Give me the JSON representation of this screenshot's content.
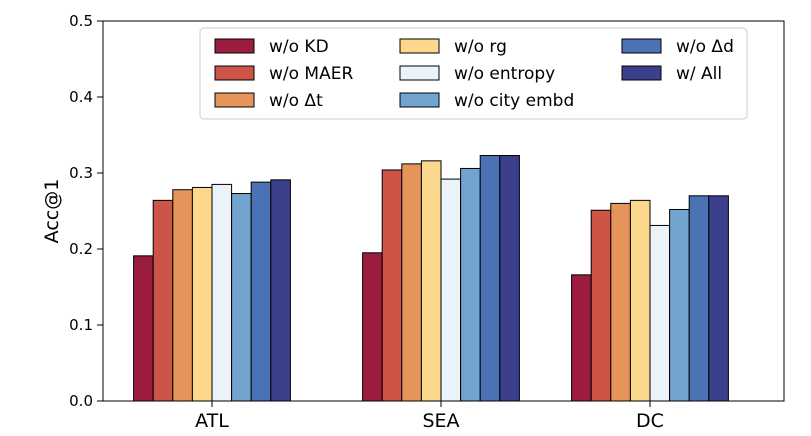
{
  "chart_data": {
    "type": "bar",
    "title": "",
    "xlabel": "",
    "ylabel": "Acc@1",
    "ylim": [
      0.0,
      0.5
    ],
    "yticks": [
      "0.0",
      "0.1",
      "0.2",
      "0.3",
      "0.4",
      "0.5"
    ],
    "categories": [
      "ATL",
      "SEA",
      "DC"
    ],
    "legend_position": "top-right",
    "series": [
      {
        "name": "w/o KD",
        "color": "#9b1c3f",
        "values": [
          0.191,
          0.195,
          0.166
        ]
      },
      {
        "name": "w/o MAER",
        "color": "#cd5548",
        "values": [
          0.264,
          0.304,
          0.251
        ]
      },
      {
        "name": "w/o Δt",
        "color": "#e5955a",
        "values": [
          0.278,
          0.312,
          0.26
        ]
      },
      {
        "name": "w/o rg",
        "color": "#fbd88c",
        "values": [
          0.281,
          0.316,
          0.264
        ]
      },
      {
        "name": "w/o entropy",
        "color": "#eaf2fa",
        "values": [
          0.285,
          0.292,
          0.231
        ]
      },
      {
        "name": "w/o city embd",
        "color": "#73a3cf",
        "values": [
          0.273,
          0.306,
          0.252
        ]
      },
      {
        "name": "w/o Δd",
        "color": "#4a72b5",
        "values": [
          0.288,
          0.323,
          0.27
        ]
      },
      {
        "name": "w/ All",
        "color": "#3b3f8c",
        "values": [
          0.291,
          0.323,
          0.27
        ]
      }
    ]
  }
}
